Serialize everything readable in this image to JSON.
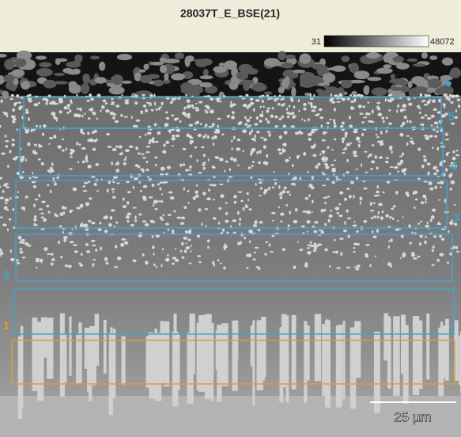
{
  "header": {
    "title": "28037T_E_BSE(21)",
    "colorbar": {
      "min": 31,
      "max": 48072
    }
  },
  "regions": [
    {
      "label": "1"
    },
    {
      "label": "2"
    },
    {
      "label": "3"
    },
    {
      "label": "4"
    },
    {
      "label": "5"
    },
    {
      "label": "6"
    }
  ],
  "scale_bar": {
    "label": "25 µm"
  }
}
